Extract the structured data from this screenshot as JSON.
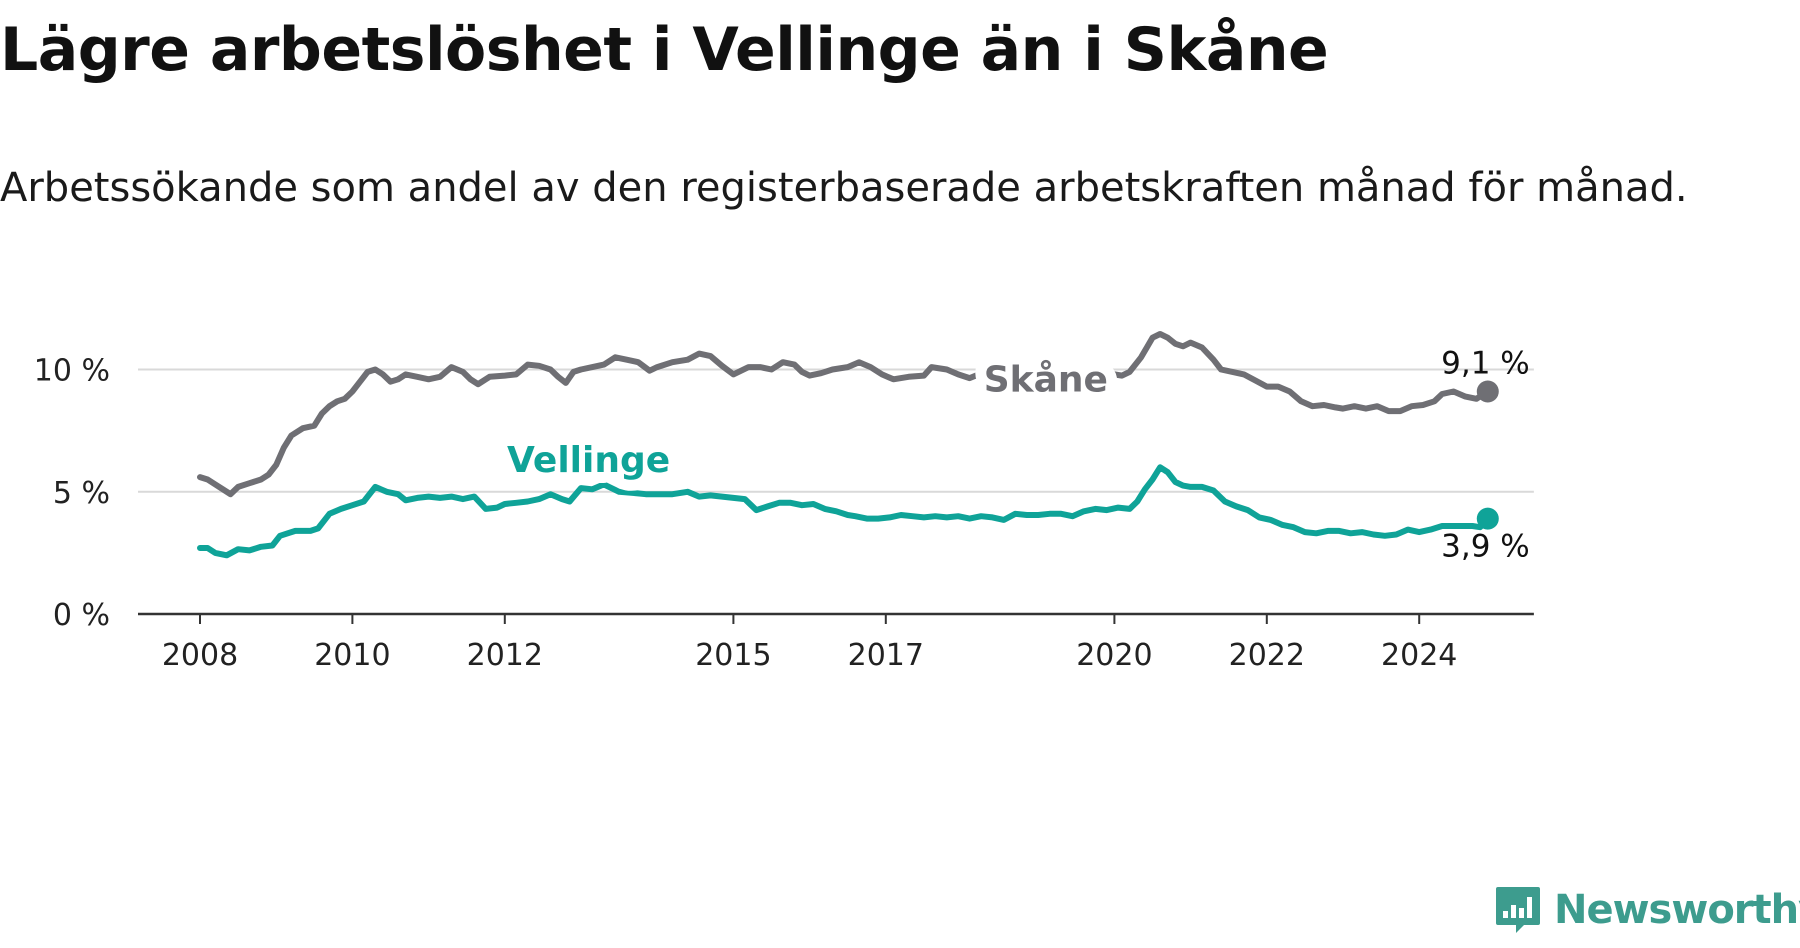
{
  "title": "Lägre arbetslöshet i Vellinge än i Skåne",
  "subtitle": "Arbetssökande som andel av den registerbaserade arbetskraften månad för månad.",
  "brand": {
    "name": "Newsworthy",
    "icon": "newsworthy-logo-icon",
    "color": "#3d9c8e"
  },
  "chart_data": {
    "type": "line",
    "title": "Lägre arbetslöshet i Vellinge än i Skåne",
    "subtitle": "Arbetssökande som andel av den registerbaserade arbetskraften månad för månad.",
    "xlabel": "",
    "ylabel": "",
    "x_range": [
      2007.2,
      2025.4
    ],
    "ylim": [
      0,
      12
    ],
    "y_ticks": [
      0,
      5,
      10
    ],
    "y_tick_labels": [
      "0 %",
      "5 %",
      "10 %"
    ],
    "x_ticks": [
      2008,
      2010,
      2012,
      2015,
      2017,
      2020,
      2022,
      2024
    ],
    "x_tick_labels": [
      "2008",
      "2010",
      "2012",
      "2015",
      "2017",
      "2020",
      "2022",
      "2024"
    ],
    "grid": true,
    "legend": "direct-labels",
    "series": [
      {
        "name": "Skåne",
        "color": "#6f6f74",
        "end_label": "9,1 %",
        "points": [
          [
            2008.0,
            5.6
          ],
          [
            2008.1,
            5.5
          ],
          [
            2008.2,
            5.3
          ],
          [
            2008.3,
            5.1
          ],
          [
            2008.4,
            4.9
          ],
          [
            2008.5,
            5.2
          ],
          [
            2008.65,
            5.35
          ],
          [
            2008.8,
            5.5
          ],
          [
            2008.9,
            5.7
          ],
          [
            2009.0,
            6.1
          ],
          [
            2009.1,
            6.8
          ],
          [
            2009.2,
            7.3
          ],
          [
            2009.35,
            7.6
          ],
          [
            2009.5,
            7.7
          ],
          [
            2009.6,
            8.2
          ],
          [
            2009.7,
            8.5
          ],
          [
            2009.8,
            8.7
          ],
          [
            2009.9,
            8.8
          ],
          [
            2010.0,
            9.1
          ],
          [
            2010.1,
            9.5
          ],
          [
            2010.2,
            9.9
          ],
          [
            2010.3,
            10.0
          ],
          [
            2010.4,
            9.8
          ],
          [
            2010.5,
            9.5
          ],
          [
            2010.6,
            9.6
          ],
          [
            2010.7,
            9.8
          ],
          [
            2010.85,
            9.7
          ],
          [
            2011.0,
            9.6
          ],
          [
            2011.15,
            9.7
          ],
          [
            2011.3,
            10.1
          ],
          [
            2011.45,
            9.9
          ],
          [
            2011.55,
            9.6
          ],
          [
            2011.65,
            9.4
          ],
          [
            2011.8,
            9.7
          ],
          [
            2012.0,
            9.75
          ],
          [
            2012.15,
            9.8
          ],
          [
            2012.3,
            10.2
          ],
          [
            2012.45,
            10.15
          ],
          [
            2012.6,
            10.0
          ],
          [
            2012.7,
            9.7
          ],
          [
            2012.8,
            9.45
          ],
          [
            2012.9,
            9.9
          ],
          [
            2013.0,
            10.0
          ],
          [
            2013.15,
            10.1
          ],
          [
            2013.3,
            10.2
          ],
          [
            2013.45,
            10.5
          ],
          [
            2013.6,
            10.4
          ],
          [
            2013.75,
            10.3
          ],
          [
            2013.9,
            9.95
          ],
          [
            2014.0,
            10.1
          ],
          [
            2014.2,
            10.3
          ],
          [
            2014.4,
            10.4
          ],
          [
            2014.55,
            10.65
          ],
          [
            2014.7,
            10.55
          ],
          [
            2014.85,
            10.15
          ],
          [
            2015.0,
            9.8
          ],
          [
            2015.2,
            10.1
          ],
          [
            2015.35,
            10.1
          ],
          [
            2015.5,
            10.0
          ],
          [
            2015.65,
            10.3
          ],
          [
            2015.8,
            10.2
          ],
          [
            2015.9,
            9.9
          ],
          [
            2016.0,
            9.75
          ],
          [
            2016.15,
            9.85
          ],
          [
            2016.3,
            10.0
          ],
          [
            2016.5,
            10.1
          ],
          [
            2016.65,
            10.3
          ],
          [
            2016.8,
            10.1
          ],
          [
            2016.95,
            9.8
          ],
          [
            2017.1,
            9.6
          ],
          [
            2017.3,
            9.7
          ],
          [
            2017.5,
            9.75
          ],
          [
            2017.6,
            10.1
          ],
          [
            2017.8,
            10.0
          ],
          [
            2017.95,
            9.8
          ],
          [
            2018.1,
            9.65
          ],
          [
            2018.3,
            9.9
          ],
          [
            2018.5,
            9.95
          ],
          [
            2018.7,
            10.0
          ],
          [
            2018.85,
            9.9
          ],
          [
            2018.95,
            9.7
          ],
          [
            2019.0,
            9.5
          ],
          [
            2019.2,
            9.4
          ],
          [
            2019.4,
            9.35
          ],
          [
            2019.6,
            9.3
          ],
          [
            2019.8,
            9.4
          ],
          [
            2020.0,
            9.8
          ],
          [
            2020.1,
            9.75
          ],
          [
            2020.2,
            9.9
          ],
          [
            2020.35,
            10.5
          ],
          [
            2020.5,
            11.3
          ],
          [
            2020.6,
            11.45
          ],
          [
            2020.7,
            11.3
          ],
          [
            2020.8,
            11.05
          ],
          [
            2020.9,
            10.95
          ],
          [
            2021.0,
            11.1
          ],
          [
            2021.15,
            10.9
          ],
          [
            2021.3,
            10.4
          ],
          [
            2021.4,
            10.0
          ],
          [
            2021.55,
            9.9
          ],
          [
            2021.7,
            9.8
          ],
          [
            2021.85,
            9.55
          ],
          [
            2022.0,
            9.3
          ],
          [
            2022.15,
            9.3
          ],
          [
            2022.3,
            9.1
          ],
          [
            2022.45,
            8.7
          ],
          [
            2022.6,
            8.5
          ],
          [
            2022.75,
            8.55
          ],
          [
            2022.9,
            8.45
          ],
          [
            2023.0,
            8.4
          ],
          [
            2023.15,
            8.5
          ],
          [
            2023.3,
            8.4
          ],
          [
            2023.45,
            8.5
          ],
          [
            2023.6,
            8.3
          ],
          [
            2023.75,
            8.3
          ],
          [
            2023.9,
            8.5
          ],
          [
            2024.05,
            8.55
          ],
          [
            2024.2,
            8.7
          ],
          [
            2024.3,
            9.0
          ],
          [
            2024.45,
            9.1
          ],
          [
            2024.6,
            8.9
          ],
          [
            2024.75,
            8.8
          ],
          [
            2024.9,
            9.1
          ]
        ]
      },
      {
        "name": "Vellinge",
        "color": "#0fa398",
        "end_label": "3,9 %",
        "points": [
          [
            2008.0,
            2.7
          ],
          [
            2008.1,
            2.7
          ],
          [
            2008.2,
            2.5
          ],
          [
            2008.35,
            2.4
          ],
          [
            2008.5,
            2.65
          ],
          [
            2008.65,
            2.6
          ],
          [
            2008.8,
            2.75
          ],
          [
            2008.95,
            2.8
          ],
          [
            2009.05,
            3.2
          ],
          [
            2009.25,
            3.4
          ],
          [
            2009.45,
            3.4
          ],
          [
            2009.55,
            3.5
          ],
          [
            2009.7,
            4.1
          ],
          [
            2009.85,
            4.3
          ],
          [
            2010.0,
            4.45
          ],
          [
            2010.15,
            4.6
          ],
          [
            2010.2,
            4.8
          ],
          [
            2010.3,
            5.2
          ],
          [
            2010.45,
            5.0
          ],
          [
            2010.6,
            4.9
          ],
          [
            2010.7,
            4.65
          ],
          [
            2010.85,
            4.75
          ],
          [
            2011.0,
            4.8
          ],
          [
            2011.15,
            4.75
          ],
          [
            2011.3,
            4.8
          ],
          [
            2011.45,
            4.7
          ],
          [
            2011.6,
            4.8
          ],
          [
            2011.75,
            4.3
          ],
          [
            2011.9,
            4.35
          ],
          [
            2012.0,
            4.5
          ],
          [
            2012.15,
            4.55
          ],
          [
            2012.3,
            4.6
          ],
          [
            2012.45,
            4.7
          ],
          [
            2012.6,
            4.9
          ],
          [
            2012.75,
            4.7
          ],
          [
            2012.85,
            4.6
          ],
          [
            2013.0,
            5.15
          ],
          [
            2013.15,
            5.1
          ],
          [
            2013.3,
            5.3
          ],
          [
            2013.5,
            5.0
          ],
          [
            2013.7,
            4.95
          ],
          [
            2013.85,
            4.9
          ],
          [
            2014.0,
            4.9
          ],
          [
            2014.2,
            4.9
          ],
          [
            2014.4,
            5.0
          ],
          [
            2014.55,
            4.8
          ],
          [
            2014.7,
            4.85
          ],
          [
            2014.85,
            4.8
          ],
          [
            2015.0,
            4.75
          ],
          [
            2015.15,
            4.7
          ],
          [
            2015.3,
            4.25
          ],
          [
            2015.45,
            4.4
          ],
          [
            2015.6,
            4.55
          ],
          [
            2015.75,
            4.55
          ],
          [
            2015.9,
            4.45
          ],
          [
            2016.05,
            4.5
          ],
          [
            2016.2,
            4.3
          ],
          [
            2016.35,
            4.2
          ],
          [
            2016.5,
            4.05
          ],
          [
            2016.6,
            4.0
          ],
          [
            2016.75,
            3.9
          ],
          [
            2016.9,
            3.9
          ],
          [
            2017.05,
            3.95
          ],
          [
            2017.2,
            4.05
          ],
          [
            2017.35,
            4.0
          ],
          [
            2017.5,
            3.95
          ],
          [
            2017.65,
            4.0
          ],
          [
            2017.8,
            3.95
          ],
          [
            2017.95,
            4.0
          ],
          [
            2018.1,
            3.9
          ],
          [
            2018.25,
            4.0
          ],
          [
            2018.4,
            3.95
          ],
          [
            2018.55,
            3.85
          ],
          [
            2018.7,
            4.1
          ],
          [
            2018.85,
            4.05
          ],
          [
            2019.0,
            4.05
          ],
          [
            2019.15,
            4.1
          ],
          [
            2019.3,
            4.1
          ],
          [
            2019.45,
            4.0
          ],
          [
            2019.6,
            4.2
          ],
          [
            2019.75,
            4.3
          ],
          [
            2019.9,
            4.25
          ],
          [
            2020.05,
            4.35
          ],
          [
            2020.2,
            4.3
          ],
          [
            2020.3,
            4.6
          ],
          [
            2020.4,
            5.1
          ],
          [
            2020.5,
            5.5
          ],
          [
            2020.6,
            6.0
          ],
          [
            2020.7,
            5.8
          ],
          [
            2020.8,
            5.4
          ],
          [
            2020.9,
            5.25
          ],
          [
            2021.0,
            5.2
          ],
          [
            2021.15,
            5.2
          ],
          [
            2021.3,
            5.05
          ],
          [
            2021.45,
            4.6
          ],
          [
            2021.6,
            4.4
          ],
          [
            2021.75,
            4.25
          ],
          [
            2021.9,
            3.95
          ],
          [
            2022.05,
            3.85
          ],
          [
            2022.2,
            3.65
          ],
          [
            2022.35,
            3.55
          ],
          [
            2022.5,
            3.35
          ],
          [
            2022.65,
            3.3
          ],
          [
            2022.8,
            3.4
          ],
          [
            2022.95,
            3.4
          ],
          [
            2023.1,
            3.3
          ],
          [
            2023.25,
            3.35
          ],
          [
            2023.4,
            3.25
          ],
          [
            2023.55,
            3.2
          ],
          [
            2023.7,
            3.25
          ],
          [
            2023.85,
            3.45
          ],
          [
            2024.0,
            3.35
          ],
          [
            2024.15,
            3.45
          ],
          [
            2024.3,
            3.6
          ],
          [
            2024.5,
            3.6
          ],
          [
            2024.7,
            3.6
          ],
          [
            2024.8,
            3.55
          ],
          [
            2024.9,
            3.9
          ]
        ]
      }
    ]
  }
}
